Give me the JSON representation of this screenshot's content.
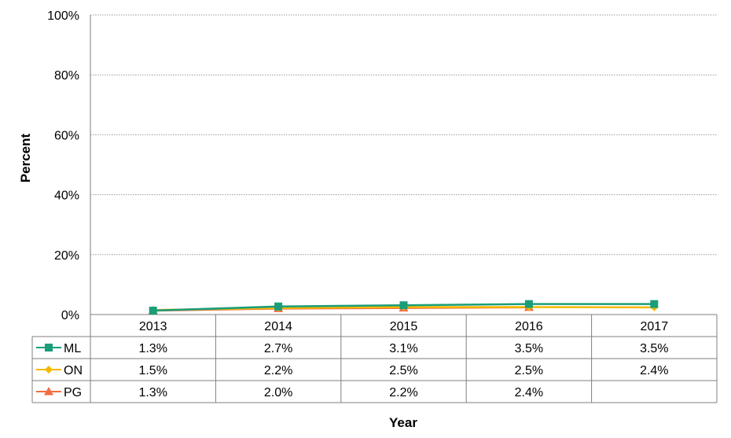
{
  "chart_data": {
    "type": "line",
    "title": "",
    "xlabel": "Year",
    "ylabel": "Percent",
    "categories": [
      "2013",
      "2014",
      "2015",
      "2016",
      "2017"
    ],
    "ylim": [
      0,
      100
    ],
    "y_ticks": [
      "0%",
      "20%",
      "40%",
      "60%",
      "80%",
      "100%"
    ],
    "y_tick_values": [
      0,
      20,
      40,
      60,
      80,
      100
    ],
    "grid": true,
    "legend": "data-table",
    "series": [
      {
        "name": "ML",
        "values": [
          1.3,
          2.7,
          3.1,
          3.5,
          3.5
        ],
        "labels": [
          "1.3%",
          "2.7%",
          "3.1%",
          "3.5%",
          "3.5%"
        ],
        "color": "#1a9e7a",
        "marker": "square"
      },
      {
        "name": "ON",
        "values": [
          1.5,
          2.2,
          2.5,
          2.5,
          2.4
        ],
        "labels": [
          "1.5%",
          "2.2%",
          "2.5%",
          "2.5%",
          "2.4%"
        ],
        "color": "#f5b800",
        "marker": "diamond"
      },
      {
        "name": "PG",
        "values": [
          1.3,
          2.0,
          2.2,
          2.4,
          null
        ],
        "labels": [
          "1.3%",
          "2.0%",
          "2.2%",
          "2.4%",
          ""
        ],
        "color": "#f26b43",
        "marker": "triangle"
      }
    ]
  }
}
